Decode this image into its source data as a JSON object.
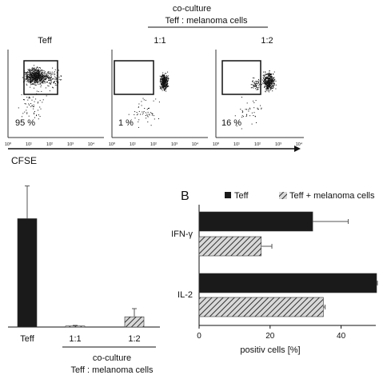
{
  "panel_a": {
    "header": {
      "line1": "co-culture",
      "line2": "Teff : melanoma cells"
    },
    "column_labels": [
      "Teff",
      "1:1",
      "1:2"
    ],
    "percentages": [
      "95 %",
      "1 %",
      "16 %"
    ],
    "x_axis_label": "CFSE",
    "tick_labels": [
      "10⁰",
      "10¹",
      "10²",
      "10³",
      "10⁴"
    ]
  },
  "panel_b_label": "B",
  "chart_data": [
    {
      "type": "bar",
      "categories": [
        "Teff",
        "1:1",
        "1:2"
      ],
      "values": [
        53,
        0.5,
        5
      ],
      "errors": [
        16,
        0.3,
        4
      ],
      "bar_styles": [
        "solid",
        "hatched",
        "hatched"
      ],
      "group_label": {
        "line1": "co-culture",
        "line2": "Teff : melanoma cells"
      },
      "ylim": [
        0,
        70
      ]
    },
    {
      "type": "bar",
      "orientation": "horizontal",
      "categories": [
        "IFN-γ",
        "IL-2"
      ],
      "series": [
        {
          "name": "Teff",
          "values": [
            32,
            50
          ],
          "errors": [
            10,
            0.5
          ],
          "style": "solid"
        },
        {
          "name": "Teff + melanoma cells",
          "values": [
            17.5,
            35
          ],
          "errors": [
            3,
            0.5
          ],
          "style": "hatched"
        }
      ],
      "xlabel": "positiv cells [%]",
      "xticks": [
        0,
        20,
        40
      ],
      "xlim": [
        0,
        50
      ],
      "legend_position": "top",
      "colors": {
        "solid": "#1a1a1a",
        "hatch": "#333333"
      }
    }
  ]
}
